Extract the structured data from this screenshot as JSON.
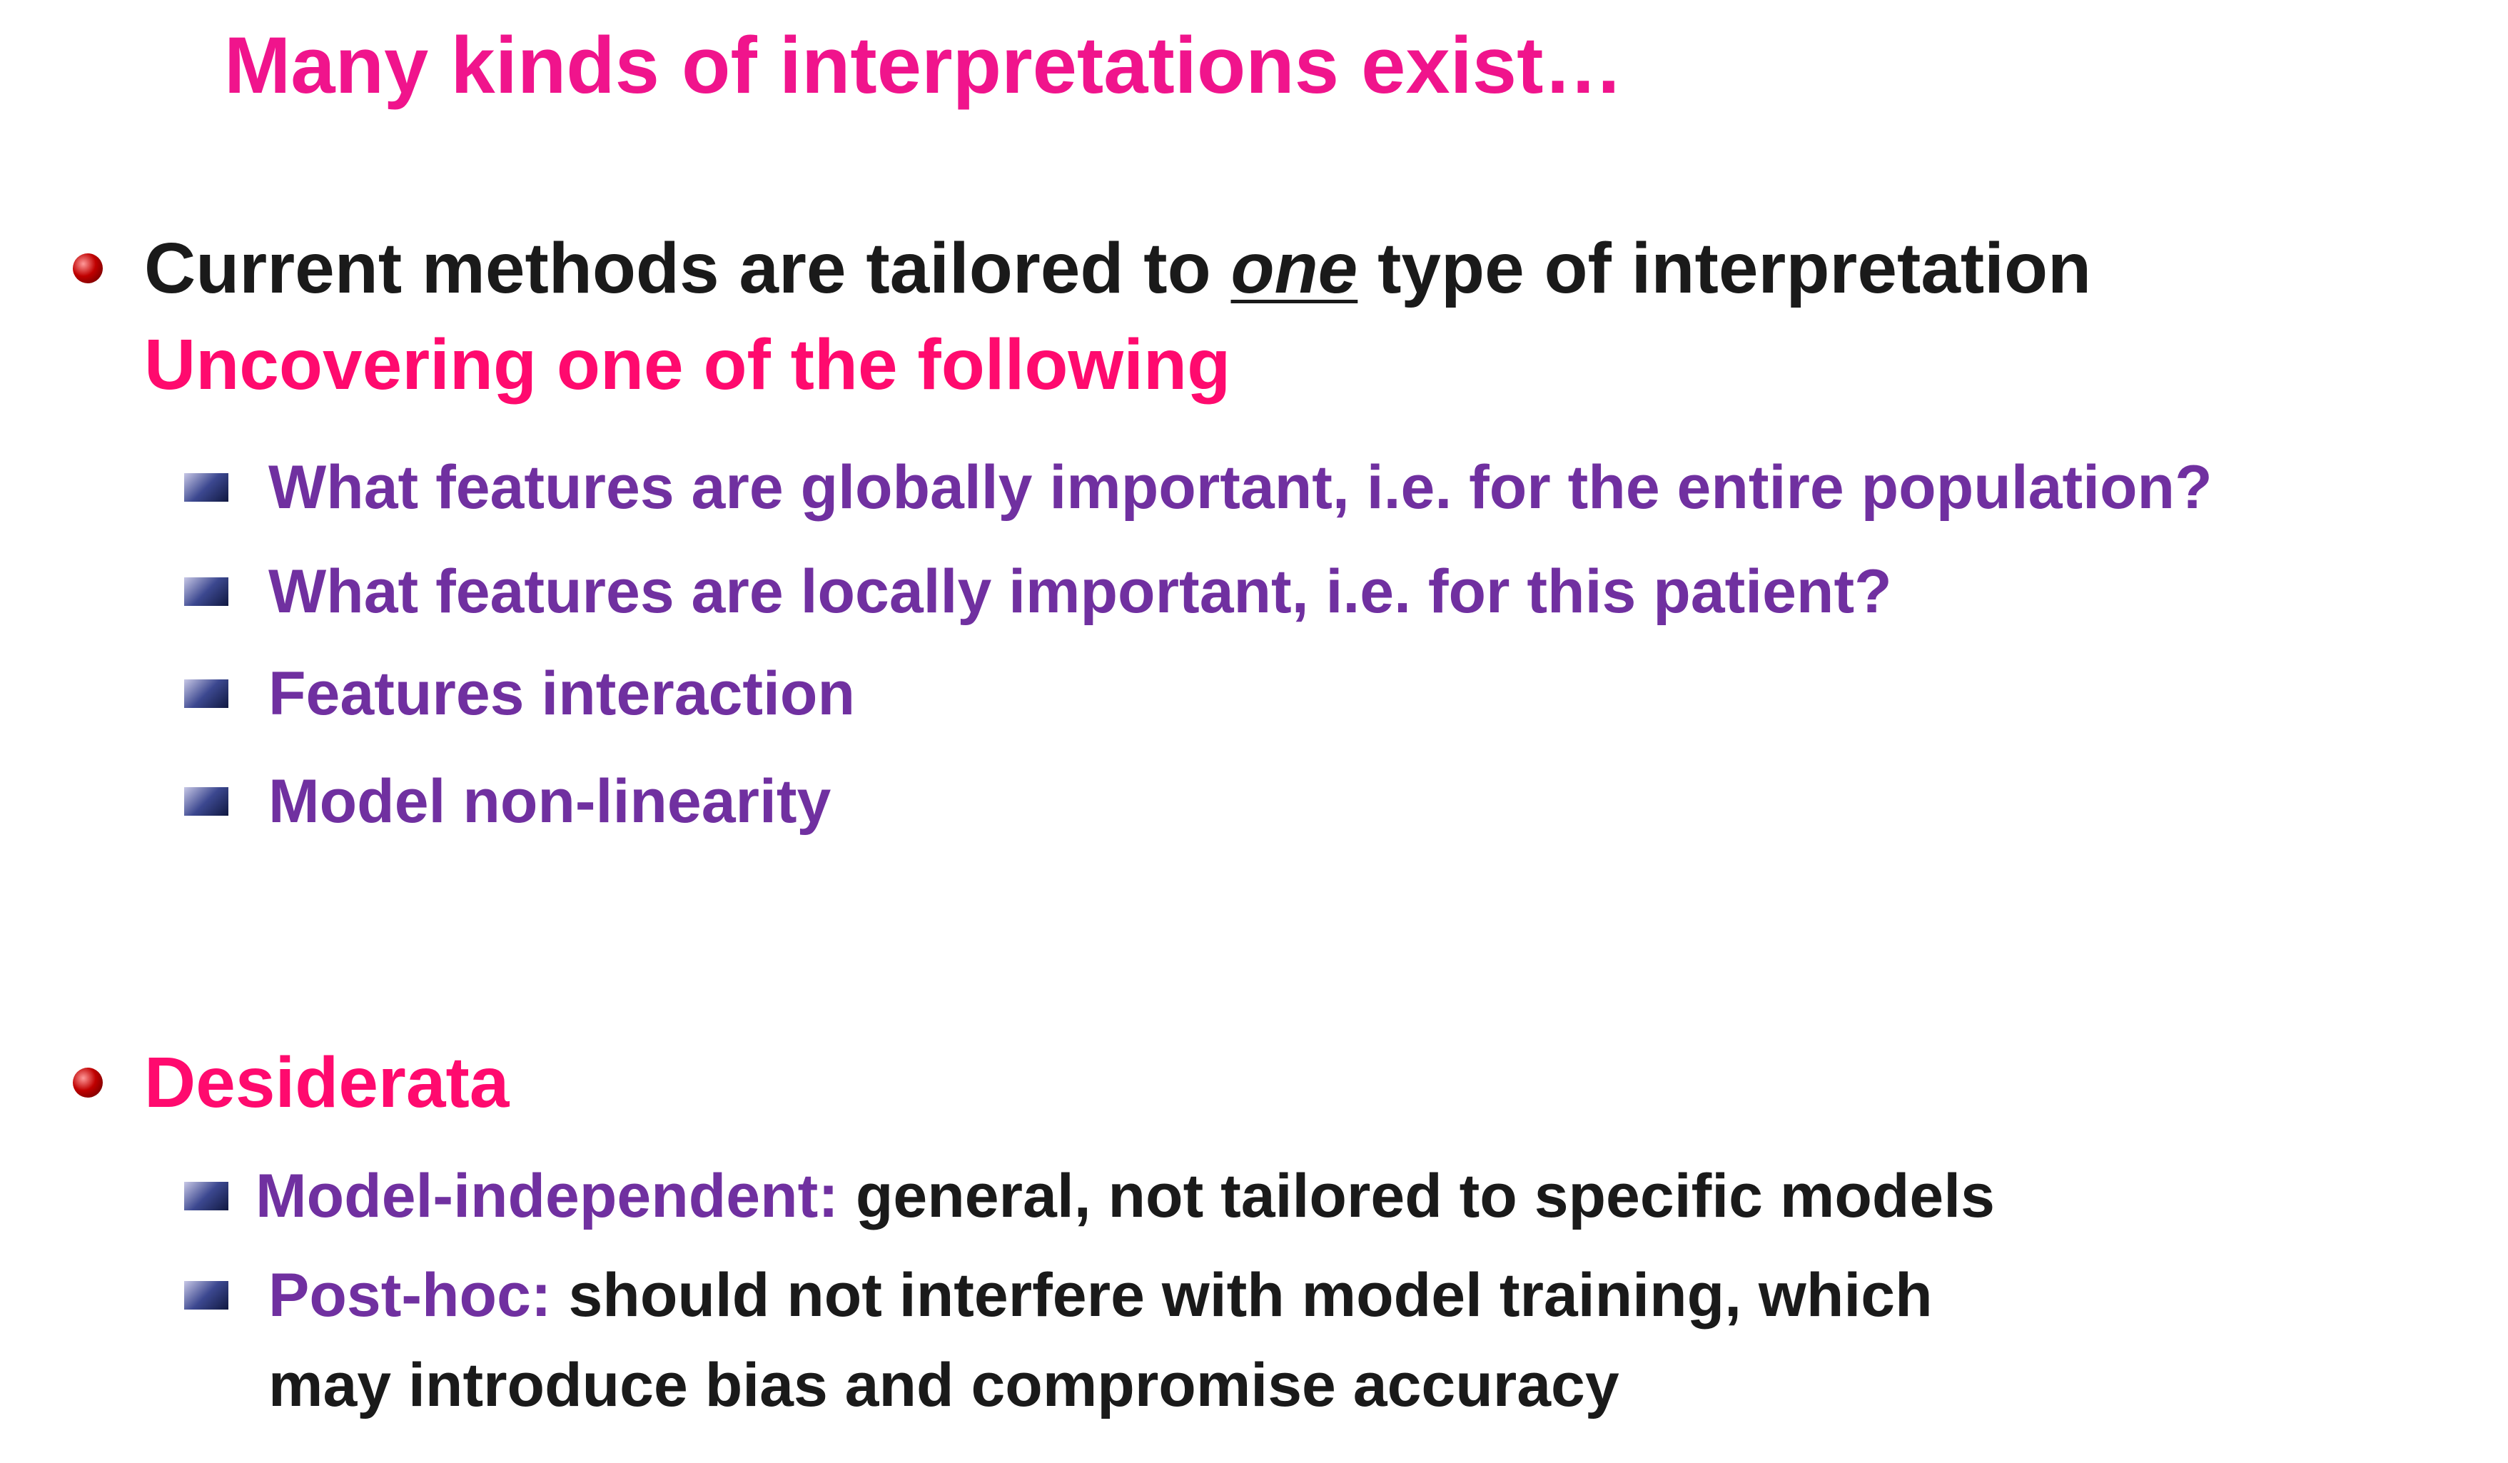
{
  "title": "Many kinds of interpretations exist…",
  "section1": {
    "line1_a": "Current methods are tailored to",
    "line1_em": "one",
    "line1_b": "type of interpretation",
    "line2": "Uncovering one of the following",
    "items": [
      "What features are globally important, i.e. for the entire population?",
      "What features are locally important, i.e. for this patient?",
      "Features interaction",
      "Model non-linearity"
    ]
  },
  "section2": {
    "heading": "Desiderata",
    "items": [
      {
        "term": "Model-independent:",
        "text": "general, not tailored to specific models"
      },
      {
        "term": "Post-hoc:",
        "text": "should not interfere with model training, which",
        "continuation": "may introduce bias and compromise accuracy"
      }
    ]
  }
}
